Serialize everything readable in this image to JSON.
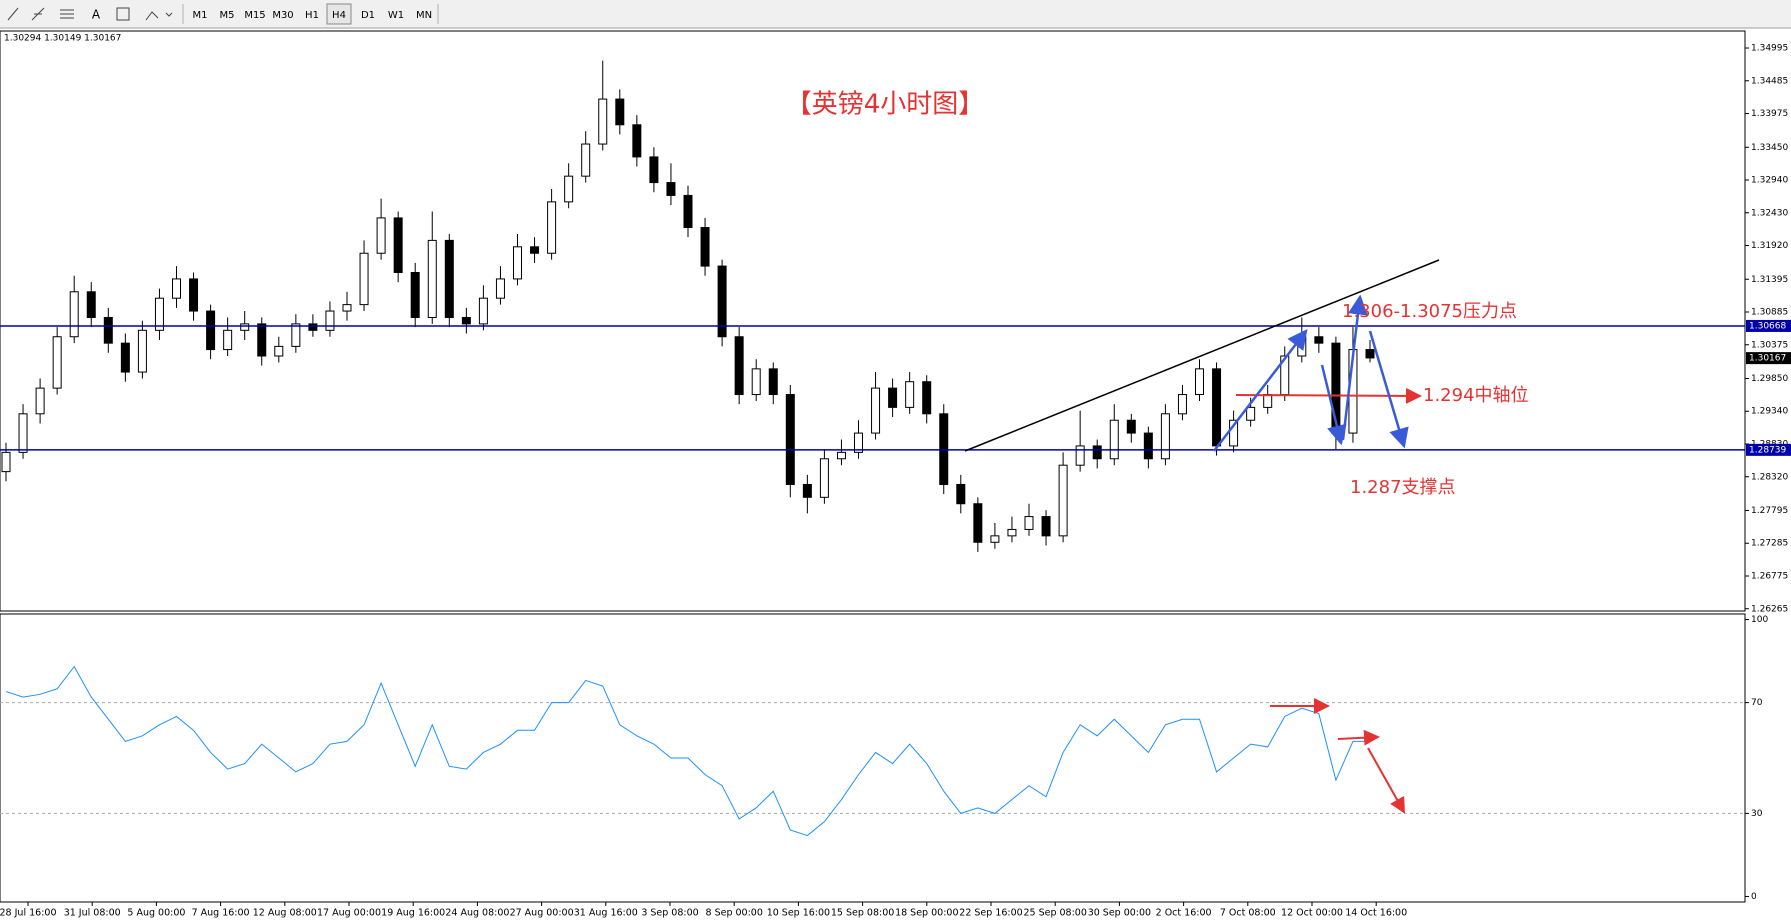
{
  "toolbar": {
    "timeframes": [
      "M1",
      "M5",
      "M15",
      "M30",
      "H1",
      "H4",
      "D1",
      "W1",
      "MN"
    ],
    "selected": "H4"
  },
  "chart_data": [
    {
      "type": "candlestick",
      "title": "【英镑4小时图】",
      "ohlc_header": "1.30294 1.30149 1.30167",
      "annotations": [
        "1.306-1.3075压力点",
        "1.294中轴位",
        "1.287支撑点"
      ],
      "up_color": "#ffffff",
      "down_color": "#000000",
      "ylim": [
        1.2623,
        1.3526
      ],
      "yticks": [
        1.34995,
        1.34485,
        1.33975,
        {
          "value": 1.3345,
          "label": "1.33450"
        },
        {
          "value": 1.3294,
          "label": "1.32940"
        },
        {
          "value": 1.3243,
          "label": "1.32430"
        },
        {
          "value": 1.3192,
          "label": "1.31920"
        },
        1.31395,
        1.30885,
        1.30375,
        {
          "value": 1.2985,
          "label": "1.29850"
        },
        {
          "value": 1.2934,
          "label": "1.29340"
        },
        {
          "value": 1.2883,
          "label": "1.28830"
        },
        {
          "value": 1.2832,
          "label": "1.28320"
        },
        1.27795,
        1.27285,
        1.26775,
        1.26265
      ],
      "hlines": [
        1.30668,
        1.28739
      ],
      "hline_color": "#0000aa",
      "last_price": 1.30167,
      "xtick_labels": [
        "28 Jul 16:00",
        "31 Jul 08:00",
        "5 Aug 00:00",
        "7 Aug 16:00",
        "12 Aug 08:00",
        "17 Aug 00:00",
        "19 Aug 16:00",
        "24 Aug 08:00",
        "27 Aug 00:00",
        "31 Aug 16:00",
        "3 Sep 08:00",
        "8 Sep 00:00",
        "10 Sep 16:00",
        "15 Sep 08:00",
        "18 Sep 00:00",
        "22 Sep 16:00",
        "25 Sep 08:00",
        "30 Sep 00:00",
        "2 Oct 16:00",
        "7 Oct 08:00",
        "12 Oct 00:00",
        "14 Oct 16:00"
      ],
      "candles": [
        [
          1.284,
          1.2885,
          1.2825,
          1.287
        ],
        [
          1.287,
          1.2945,
          1.286,
          1.293
        ],
        [
          1.293,
          1.2985,
          1.2915,
          1.297
        ],
        [
          1.297,
          1.3065,
          1.296,
          1.305
        ],
        [
          1.305,
          1.3145,
          1.304,
          1.312
        ],
        [
          1.312,
          1.3135,
          1.3065,
          1.308
        ],
        [
          1.308,
          1.3095,
          1.3025,
          1.304
        ],
        [
          1.304,
          1.3055,
          1.298,
          1.2995
        ],
        [
          1.2995,
          1.3075,
          1.2985,
          1.306
        ],
        [
          1.306,
          1.3125,
          1.3045,
          1.311
        ],
        [
          1.311,
          1.316,
          1.3095,
          1.314
        ],
        [
          1.314,
          1.315,
          1.3075,
          1.309
        ],
        [
          1.309,
          1.31,
          1.3015,
          1.303
        ],
        [
          1.303,
          1.308,
          1.302,
          1.306
        ],
        [
          1.306,
          1.309,
          1.3045,
          1.307
        ],
        [
          1.307,
          1.308,
          1.3005,
          1.302
        ],
        [
          1.302,
          1.305,
          1.301,
          1.3035
        ],
        [
          1.3035,
          1.3085,
          1.3025,
          1.307
        ],
        [
          1.307,
          1.3085,
          1.305,
          1.306
        ],
        [
          1.306,
          1.3105,
          1.305,
          1.309
        ],
        [
          1.309,
          1.312,
          1.3075,
          1.31
        ],
        [
          1.31,
          1.32,
          1.309,
          1.318
        ],
        [
          1.318,
          1.3265,
          1.317,
          1.3235
        ],
        [
          1.3235,
          1.3245,
          1.3135,
          1.315
        ],
        [
          1.315,
          1.3165,
          1.3065,
          1.308
        ],
        [
          1.308,
          1.3245,
          1.307,
          1.32
        ],
        [
          1.32,
          1.321,
          1.3065,
          1.308
        ],
        [
          1.308,
          1.3095,
          1.3055,
          1.307
        ],
        [
          1.307,
          1.313,
          1.306,
          1.311
        ],
        [
          1.311,
          1.316,
          1.31,
          1.314
        ],
        [
          1.314,
          1.321,
          1.313,
          1.319
        ],
        [
          1.319,
          1.3205,
          1.3165,
          1.318
        ],
        [
          1.318,
          1.328,
          1.317,
          1.326
        ],
        [
          1.326,
          1.332,
          1.325,
          1.33
        ],
        [
          1.33,
          1.337,
          1.329,
          1.335
        ],
        [
          1.335,
          1.348,
          1.334,
          1.342
        ],
        [
          1.342,
          1.3435,
          1.3365,
          1.338
        ],
        [
          1.338,
          1.3395,
          1.3315,
          1.333
        ],
        [
          1.333,
          1.3345,
          1.3275,
          1.329
        ],
        [
          1.329,
          1.332,
          1.3255,
          1.327
        ],
        [
          1.327,
          1.3285,
          1.3205,
          1.322
        ],
        [
          1.322,
          1.3235,
          1.3145,
          1.316
        ],
        [
          1.316,
          1.317,
          1.3035,
          1.305
        ],
        [
          1.305,
          1.3065,
          1.2945,
          1.296
        ],
        [
          1.296,
          1.3015,
          1.295,
          1.3
        ],
        [
          1.3,
          1.301,
          1.2945,
          1.296
        ],
        [
          1.296,
          1.2975,
          1.28,
          1.282
        ],
        [
          1.282,
          1.2835,
          1.2775,
          1.28
        ],
        [
          1.28,
          1.2875,
          1.279,
          1.286
        ],
        [
          1.286,
          1.289,
          1.285,
          1.287
        ],
        [
          1.287,
          1.292,
          1.286,
          1.29
        ],
        [
          1.29,
          1.2995,
          1.289,
          1.297
        ],
        [
          1.297,
          1.2985,
          1.2925,
          1.294
        ],
        [
          1.294,
          1.2995,
          1.293,
          1.298
        ],
        [
          1.298,
          1.299,
          1.2915,
          1.293
        ],
        [
          1.293,
          1.2945,
          1.2805,
          1.282
        ],
        [
          1.282,
          1.2835,
          1.2775,
          1.279
        ],
        [
          1.279,
          1.28,
          1.2715,
          1.273
        ],
        [
          1.273,
          1.276,
          1.272,
          1.274
        ],
        [
          1.274,
          1.277,
          1.273,
          1.275
        ],
        [
          1.275,
          1.279,
          1.274,
          1.277
        ],
        [
          1.277,
          1.278,
          1.2725,
          1.274
        ],
        [
          1.274,
          1.287,
          1.273,
          1.285
        ],
        [
          1.285,
          1.2935,
          1.284,
          1.288
        ],
        [
          1.288,
          1.289,
          1.2845,
          1.286
        ],
        [
          1.286,
          1.2945,
          1.285,
          1.292
        ],
        [
          1.292,
          1.293,
          1.2885,
          1.29
        ],
        [
          1.29,
          1.291,
          1.2845,
          1.286
        ],
        [
          1.286,
          1.2945,
          1.285,
          1.293
        ],
        [
          1.293,
          1.2975,
          1.292,
          1.296
        ],
        [
          1.296,
          1.3015,
          1.295,
          1.3
        ],
        [
          1.3,
          1.301,
          1.2865,
          1.288
        ],
        [
          1.288,
          1.2935,
          1.287,
          1.292
        ],
        [
          1.292,
          1.2955,
          1.291,
          1.294
        ],
        [
          1.294,
          1.2975,
          1.293,
          1.296
        ],
        [
          1.296,
          1.3035,
          1.295,
          1.302
        ],
        [
          1.302,
          1.308,
          1.301,
          1.305
        ],
        [
          1.305,
          1.3065,
          1.3025,
          1.304
        ],
        [
          1.304,
          1.305,
          1.2875,
          1.29
        ],
        [
          1.29,
          1.3065,
          1.2885,
          1.303
        ],
        [
          1.303,
          1.3045,
          1.301,
          1.3017
        ]
      ]
    },
    {
      "type": "line",
      "color": "#1e90ff",
      "ylim": [
        -2,
        102
      ],
      "yticks": [
        100,
        70,
        30,
        0
      ],
      "levels": [
        70,
        30
      ],
      "values": [
        74,
        72,
        73,
        75,
        83,
        72,
        64,
        56,
        58,
        62,
        65,
        60,
        52,
        46,
        48,
        55,
        50,
        45,
        48,
        55,
        56,
        62,
        77,
        62,
        47,
        62,
        47,
        46,
        52,
        55,
        60,
        60,
        70,
        70,
        78,
        76,
        62,
        58,
        55,
        50,
        50,
        44,
        40,
        28,
        32,
        38,
        24,
        22,
        27,
        35,
        44,
        52,
        48,
        55,
        48,
        38,
        30,
        32,
        30,
        35,
        40,
        36,
        52,
        62,
        58,
        64,
        58,
        52,
        62,
        64,
        64,
        45,
        50,
        55,
        54,
        65,
        68,
        66,
        42,
        56,
        56
      ]
    }
  ]
}
